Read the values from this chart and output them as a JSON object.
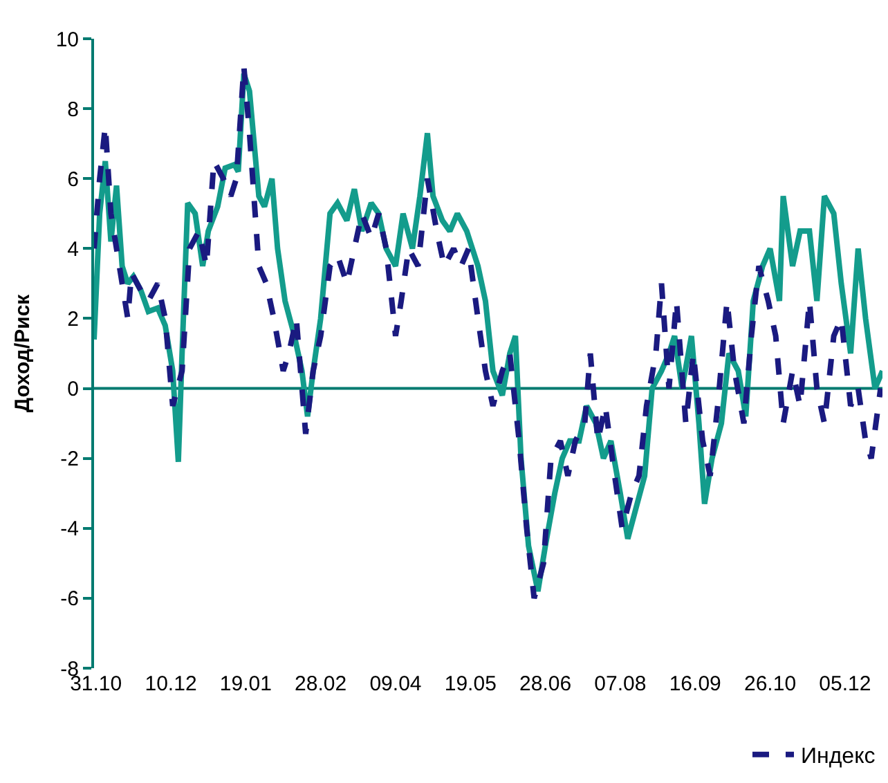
{
  "chart_data": {
    "type": "line",
    "ylabel": "Доход/Риск",
    "xlim": [
      "2001-10-30",
      "2002-12-25"
    ],
    "xticks": [
      {
        "value": "2001-10-31",
        "label": "31.10"
      },
      {
        "value": "2001-12-10",
        "label": "10.12"
      },
      {
        "value": "2002-01-19",
        "label": "19.01"
      },
      {
        "value": "2002-02-28",
        "label": "28.02"
      },
      {
        "value": "2002-04-09",
        "label": "09.04"
      },
      {
        "value": "2002-05-19",
        "label": "19.05"
      },
      {
        "value": "2002-06-28",
        "label": "28.06"
      },
      {
        "value": "2002-08-07",
        "label": "07.08"
      },
      {
        "value": "2002-09-16",
        "label": "16.09"
      },
      {
        "value": "2002-10-26",
        "label": "26.10"
      },
      {
        "value": "2002-12-05",
        "label": "05.12"
      }
    ],
    "ylim": [
      -8,
      10
    ],
    "yticks": [
      -8,
      -6,
      -4,
      -2,
      0,
      2,
      4,
      6,
      8,
      10
    ],
    "legend": "bottom",
    "marker": "none",
    "ref_lines": [
      {
        "axis": "y",
        "value": 0,
        "color": "#007a70"
      }
    ],
    "series": [
      {
        "color": "#139c8c",
        "line_style": "solid",
        "x": [
          "2001-10-30",
          "2001-11-02",
          "2001-11-05",
          "2001-11-08",
          "2001-11-11",
          "2001-11-14",
          "2001-11-17",
          "2001-11-20",
          "2001-11-24",
          "2001-11-28",
          "2001-12-03",
          "2001-12-07",
          "2001-12-11",
          "2001-12-14",
          "2001-12-16",
          "2001-12-19",
          "2001-12-23",
          "2001-12-27",
          "2001-12-30",
          "2002-01-04",
          "2002-01-08",
          "2002-01-13",
          "2002-01-15",
          "2002-01-18",
          "2002-01-21",
          "2002-01-26",
          "2002-01-29",
          "2002-02-02",
          "2002-02-05",
          "2002-02-09",
          "2002-02-14",
          "2002-02-18",
          "2002-02-21",
          "2002-02-24",
          "2002-02-28",
          "2002-03-05",
          "2002-03-09",
          "2002-03-14",
          "2002-03-18",
          "2002-03-22",
          "2002-03-27",
          "2002-03-31",
          "2002-04-04",
          "2002-04-09",
          "2002-04-13",
          "2002-04-18",
          "2002-04-22",
          "2002-04-26",
          "2002-04-29",
          "2002-05-04",
          "2002-05-08",
          "2002-05-12",
          "2002-05-17",
          "2002-05-23",
          "2002-05-27",
          "2002-05-31",
          "2002-06-05",
          "2002-06-09",
          "2002-06-12",
          "2002-06-15",
          "2002-06-19",
          "2002-06-24",
          "2002-06-28",
          "2002-07-03",
          "2002-07-07",
          "2002-07-11",
          "2002-07-16",
          "2002-07-20",
          "2002-07-25",
          "2002-07-29",
          "2002-08-02",
          "2002-08-07",
          "2002-08-11",
          "2002-08-15",
          "2002-08-20",
          "2002-08-24",
          "2002-08-29",
          "2002-09-02",
          "2002-09-05",
          "2002-09-09",
          "2002-09-14",
          "2002-09-18",
          "2002-09-21",
          "2002-09-25",
          "2002-09-30",
          "2002-10-04",
          "2002-10-09",
          "2002-10-13",
          "2002-10-17",
          "2002-10-22",
          "2002-10-26",
          "2002-10-31",
          "2002-11-02",
          "2002-11-07",
          "2002-11-11",
          "2002-11-16",
          "2002-11-20",
          "2002-11-24",
          "2002-11-29",
          "2002-12-03",
          "2002-12-08",
          "2002-12-12",
          "2002-12-16",
          "2002-12-21",
          "2002-12-25"
        ],
        "values": [
          1.4,
          5,
          6.5,
          4.2,
          5.8,
          3.5,
          3,
          3.2,
          2.8,
          2.2,
          2.3,
          1.8,
          0.5,
          -2.1,
          1,
          5.3,
          5,
          3.5,
          4.5,
          5.2,
          6.3,
          6.4,
          6.2,
          9,
          8.5,
          5.5,
          5.2,
          6,
          4,
          2.5,
          1.5,
          0.5,
          -0.8,
          0.5,
          2,
          5,
          5.3,
          4.8,
          5.7,
          4.5,
          5.3,
          5,
          4,
          3.5,
          5,
          4,
          5.5,
          7.3,
          5.5,
          4.8,
          4.5,
          5,
          4.5,
          3.5,
          2.5,
          0.5,
          -0.2,
          1,
          1.5,
          -2,
          -4.5,
          -5.8,
          -4.5,
          -3,
          -2,
          -1.5,
          -1.5,
          -0.5,
          -1,
          -2,
          -1.5,
          -3,
          -4.3,
          -3.5,
          -2.5,
          0,
          0.5,
          1,
          1.5,
          0,
          1.5,
          -1,
          -3.3,
          -2,
          -1,
          1,
          0.5,
          -0.8,
          2.5,
          3.5,
          4,
          2.5,
          5.5,
          3.5,
          4.5,
          4.5,
          2.5,
          5.5,
          5,
          3,
          1,
          4,
          2,
          0,
          0.5
        ]
      },
      {
        "name": "Индекс",
        "color": "#1a1a80",
        "line_style": "dashed",
        "x": [
          "2001-10-30",
          "2001-11-02",
          "2001-11-05",
          "2001-11-08",
          "2001-11-11",
          "2001-11-14",
          "2001-11-17",
          "2001-11-19",
          "2001-11-24",
          "2001-11-28",
          "2001-12-03",
          "2001-12-07",
          "2001-12-11",
          "2001-12-16",
          "2001-12-20",
          "2001-12-25",
          "2001-12-29",
          "2002-01-02",
          "2002-01-07",
          "2002-01-11",
          "2002-01-14",
          "2002-01-18",
          "2002-01-21",
          "2002-01-26",
          "2002-01-30",
          "2002-02-03",
          "2002-02-08",
          "2002-02-11",
          "2002-02-15",
          "2002-02-20",
          "2002-02-24",
          "2002-02-28",
          "2002-03-05",
          "2002-03-09",
          "2002-03-14",
          "2002-03-18",
          "2002-03-22",
          "2002-03-27",
          "2002-03-31",
          "2002-04-04",
          "2002-04-09",
          "2002-04-12",
          "2002-04-16",
          "2002-04-21",
          "2002-04-26",
          "2002-05-01",
          "2002-05-05",
          "2002-05-10",
          "2002-05-14",
          "2002-05-18",
          "2002-05-23",
          "2002-05-27",
          "2002-05-31",
          "2002-06-05",
          "2002-06-09",
          "2002-06-14",
          "2002-06-18",
          "2002-06-22",
          "2002-06-27",
          "2002-07-01",
          "2002-07-06",
          "2002-07-10",
          "2002-07-14",
          "2002-07-19",
          "2002-07-22",
          "2002-07-26",
          "2002-07-30",
          "2002-08-04",
          "2002-08-08",
          "2002-08-13",
          "2002-08-17",
          "2002-08-21",
          "2002-08-26",
          "2002-08-29",
          "2002-09-02",
          "2002-09-06",
          "2002-09-11",
          "2002-09-15",
          "2002-09-20",
          "2002-09-24",
          "2002-09-28",
          "2002-10-03",
          "2002-10-07",
          "2002-10-12",
          "2002-10-16",
          "2002-10-20",
          "2002-10-25",
          "2002-10-29",
          "2002-11-02",
          "2002-11-07",
          "2002-11-11",
          "2002-11-16",
          "2002-11-20",
          "2002-11-24",
          "2002-11-29",
          "2002-12-03",
          "2002-12-08",
          "2002-12-12",
          "2002-12-16",
          "2002-12-19",
          "2002-12-24"
        ],
        "values": [
          4,
          6,
          7.5,
          5,
          4,
          3,
          2,
          3.3,
          2.8,
          2.5,
          3,
          2,
          -0.5,
          0.5,
          4,
          4.5,
          3.5,
          6.5,
          6,
          5.5,
          6,
          9.2,
          7.3,
          3.5,
          3,
          2,
          0.5,
          1,
          2,
          -1.3,
          0.5,
          1.5,
          3.5,
          3.8,
          3,
          4,
          5,
          4.3,
          5,
          4,
          1.5,
          2.5,
          4,
          3.5,
          6,
          4.5,
          3.5,
          4,
          3.5,
          4,
          2,
          0.5,
          -0.5,
          0.5,
          1,
          -1.5,
          -4,
          -6,
          -5,
          -2,
          -1.5,
          -2.5,
          -1.5,
          -1,
          1,
          -1.5,
          -0.5,
          -2.5,
          -4,
          -3,
          -2.5,
          -0.5,
          1,
          3,
          0,
          2.5,
          -1,
          1,
          -1.5,
          -2.5,
          -0.5,
          2.5,
          0.5,
          -1,
          1.5,
          3.5,
          2.5,
          1.5,
          -1,
          0.5,
          -0.5,
          2.5,
          0,
          -1,
          1.5,
          2,
          -0.5,
          0,
          -1.5,
          -2,
          0
        ]
      }
    ]
  }
}
